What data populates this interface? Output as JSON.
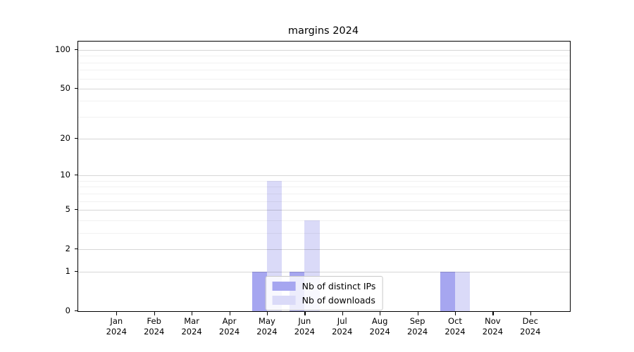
{
  "chart_data": {
    "type": "bar",
    "title": "margins 2024",
    "categories": [
      "Jan 2024",
      "Feb 2024",
      "Mar 2024",
      "Apr 2024",
      "May 2024",
      "Jun 2024",
      "Jul 2024",
      "Aug 2024",
      "Sep 2024",
      "Oct 2024",
      "Nov 2024",
      "Dec 2024"
    ],
    "series": [
      {
        "name": "Nb of distinct IPs",
        "color": "#a6a6f0",
        "values": [
          0,
          0,
          0,
          0,
          1,
          1,
          0,
          0,
          0,
          1,
          0,
          0
        ]
      },
      {
        "name": "Nb of downloads",
        "color": "#dadaf8",
        "values": [
          0,
          0,
          0,
          0,
          9,
          4,
          0,
          0,
          0,
          1,
          0,
          0
        ]
      }
    ],
    "xlabel": "",
    "ylabel": "",
    "y_axis": {
      "scale": "log1p",
      "ticks": [
        0,
        1,
        2,
        5,
        10,
        20,
        50,
        100
      ],
      "tick_labels": [
        "0",
        "1",
        "2",
        "5",
        "10",
        "20",
        "50",
        "100"
      ],
      "minor_ticks": [
        3,
        4,
        6,
        7,
        8,
        9,
        30,
        40,
        60,
        70,
        80,
        90
      ],
      "ylim": [
        0,
        115
      ]
    },
    "grid": "horizontal major+minor",
    "legend_position": "lower center"
  }
}
